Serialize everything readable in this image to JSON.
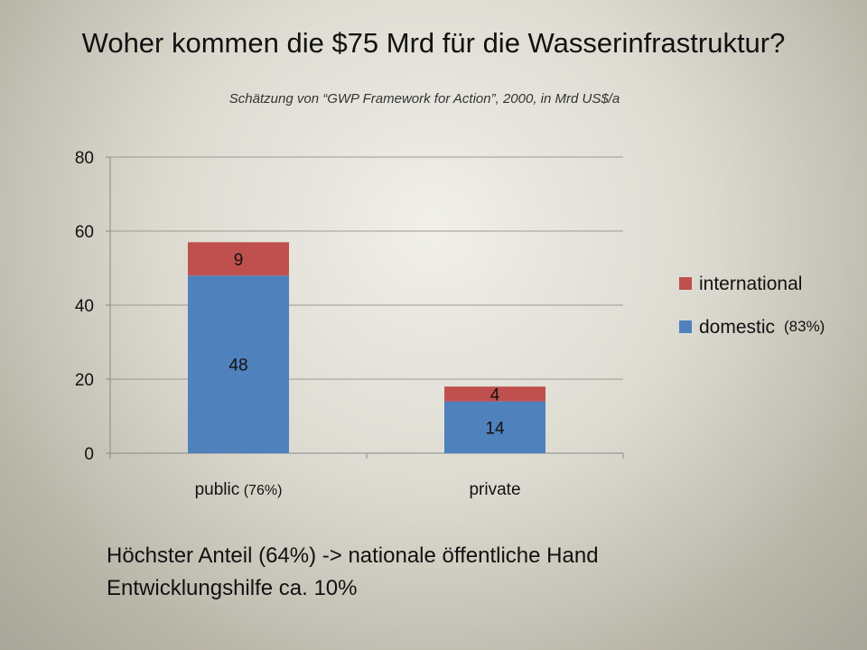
{
  "title": "Woher kommen die $75 Mrd für die Wasserinfrastruktur?",
  "subtitle": "Schätzung von “GWP Framework for Action”, 2000, in Mrd US$/a",
  "chart_data": {
    "type": "bar",
    "stacked": true,
    "categories": [
      "public",
      "private"
    ],
    "category_annotations": [
      "(76%)",
      ""
    ],
    "series": [
      {
        "name": "domestic",
        "values": [
          48,
          14
        ],
        "color": "#4f81bd",
        "legend_annotation": "(83%)"
      },
      {
        "name": "international",
        "values": [
          9,
          4
        ],
        "color": "#c0504d",
        "legend_annotation": ""
      }
    ],
    "ylim": [
      0,
      80
    ],
    "yticks": [
      0,
      20,
      40,
      60,
      80
    ],
    "grid": true,
    "legend_position": "right",
    "data_labels": true
  },
  "notes": [
    "Höchster Anteil (64%) -> nationale öffentliche Hand",
    "Entwicklungshilfe ca. 10%"
  ]
}
